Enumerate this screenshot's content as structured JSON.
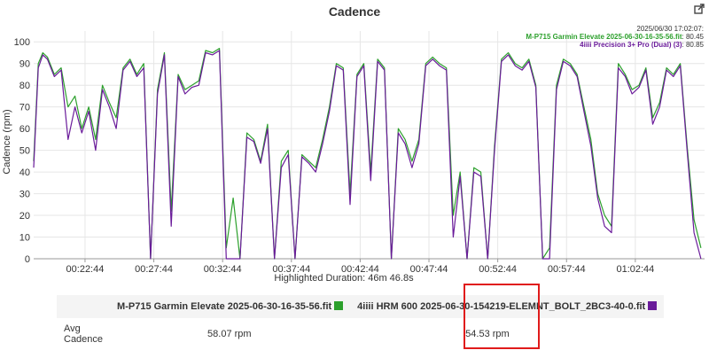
{
  "header": {
    "export_icon": "external-link-icon"
  },
  "chart_data": {
    "type": "line",
    "title": "Cadence",
    "ylabel": "Cadence (rpm)",
    "xlabel": "",
    "ylim": [
      0,
      105
    ],
    "yticks": [
      0,
      10,
      20,
      30,
      40,
      50,
      60,
      70,
      80,
      90,
      100
    ],
    "xlim": [
      "00:19:00",
      "01:07:46"
    ],
    "xticks": [
      "00:22:44",
      "00:27:44",
      "00:32:44",
      "00:37:44",
      "00:42:44",
      "00:47:44",
      "00:52:44",
      "00:57:44",
      "01:02:44"
    ],
    "grid": true,
    "legend": {
      "placement": "top-right",
      "timestamp": "2025/06/30 17:02:07:",
      "entries": [
        {
          "name": "M-P715 Garmin Elevate 2025-06-30-16-35-56.fit",
          "value": "80.45"
        },
        {
          "name": "4iiii Precision 3+ Pro (Dual) (3)",
          "value": "80.85"
        }
      ]
    },
    "highlighted_duration": "Highlighted Duration: 46m 46.8s",
    "series": [
      {
        "name": "M-P715 Garmin Elevate 2025-06-30-16-35-56.fit",
        "color": "#2ca02c",
        "x": [
          "00:19:00",
          "00:19:20",
          "00:19:40",
          "00:20:00",
          "00:20:30",
          "00:21:00",
          "00:21:30",
          "00:22:00",
          "00:22:30",
          "00:23:00",
          "00:23:30",
          "00:24:00",
          "00:24:30",
          "00:25:00",
          "00:25:30",
          "00:26:00",
          "00:26:30",
          "00:27:00",
          "00:27:30",
          "00:28:00",
          "00:28:30",
          "00:29:00",
          "00:29:30",
          "00:30:00",
          "00:30:30",
          "00:31:00",
          "00:31:30",
          "00:32:00",
          "00:32:30",
          "00:33:00",
          "00:33:30",
          "00:34:00",
          "00:34:30",
          "00:35:00",
          "00:35:30",
          "00:36:00",
          "00:36:30",
          "00:37:00",
          "00:37:30",
          "00:38:00",
          "00:38:30",
          "00:39:00",
          "00:39:30",
          "00:40:00",
          "00:40:30",
          "00:41:00",
          "00:41:30",
          "00:42:00",
          "00:42:30",
          "00:43:00",
          "00:43:30",
          "00:44:00",
          "00:44:30",
          "00:45:00",
          "00:45:30",
          "00:46:00",
          "00:46:30",
          "00:47:00",
          "00:47:30",
          "00:48:00",
          "00:48:30",
          "00:49:00",
          "00:49:30",
          "00:50:00",
          "00:50:30",
          "00:51:00",
          "00:51:30",
          "00:52:00",
          "00:52:30",
          "00:53:00",
          "00:53:30",
          "00:54:00",
          "00:54:30",
          "00:55:00",
          "00:55:30",
          "00:56:00",
          "00:56:30",
          "00:57:00",
          "00:57:30",
          "00:58:00",
          "00:58:30",
          "00:59:00",
          "00:59:30",
          "01:00:00",
          "01:00:30",
          "01:01:00",
          "01:01:30",
          "01:02:00",
          "01:02:30",
          "01:03:00",
          "01:03:30",
          "01:04:00",
          "01:04:30",
          "01:05:00",
          "01:05:30",
          "01:06:00",
          "01:06:30",
          "01:07:00",
          "01:07:30"
        ],
        "values": [
          45,
          90,
          95,
          93,
          85,
          88,
          70,
          75,
          60,
          70,
          55,
          80,
          72,
          65,
          88,
          92,
          85,
          90,
          0,
          78,
          95,
          22,
          85,
          78,
          80,
          82,
          96,
          95,
          97,
          5,
          28,
          0,
          58,
          55,
          45,
          62,
          0,
          45,
          50,
          0,
          48,
          45,
          42,
          55,
          70,
          90,
          88,
          30,
          85,
          90,
          40,
          92,
          88,
          0,
          60,
          55,
          45,
          55,
          90,
          93,
          90,
          88,
          20,
          40,
          0,
          42,
          40,
          0,
          52,
          92,
          95,
          90,
          88,
          92,
          80,
          0,
          5,
          80,
          92,
          90,
          85,
          70,
          55,
          30,
          20,
          15,
          90,
          85,
          78,
          80,
          88,
          65,
          72,
          88,
          85,
          90,
          52,
          18,
          5
        ]
      },
      {
        "name": "4iiii Precision 3+ Pro (Dual) (3)",
        "color": "#6a1b9a",
        "x": [
          "00:19:00",
          "00:19:20",
          "00:19:40",
          "00:20:00",
          "00:20:30",
          "00:21:00",
          "00:21:30",
          "00:22:00",
          "00:22:30",
          "00:23:00",
          "00:23:30",
          "00:24:00",
          "00:24:30",
          "00:25:00",
          "00:25:30",
          "00:26:00",
          "00:26:30",
          "00:27:00",
          "00:27:30",
          "00:28:00",
          "00:28:30",
          "00:29:00",
          "00:29:30",
          "00:30:00",
          "00:30:30",
          "00:31:00",
          "00:31:30",
          "00:32:00",
          "00:32:30",
          "00:33:00",
          "00:33:30",
          "00:34:00",
          "00:34:30",
          "00:35:00",
          "00:35:30",
          "00:36:00",
          "00:36:30",
          "00:37:00",
          "00:37:30",
          "00:38:00",
          "00:38:30",
          "00:39:00",
          "00:39:30",
          "00:40:00",
          "00:40:30",
          "00:41:00",
          "00:41:30",
          "00:42:00",
          "00:42:30",
          "00:43:00",
          "00:43:30",
          "00:44:00",
          "00:44:30",
          "00:45:00",
          "00:45:30",
          "00:46:00",
          "00:46:30",
          "00:47:00",
          "00:47:30",
          "00:48:00",
          "00:48:30",
          "00:49:00",
          "00:49:30",
          "00:50:00",
          "00:50:30",
          "00:51:00",
          "00:51:30",
          "00:52:00",
          "00:52:30",
          "00:53:00",
          "00:53:30",
          "00:54:00",
          "00:54:30",
          "00:55:00",
          "00:55:30",
          "00:56:00",
          "00:56:30",
          "00:57:00",
          "00:57:30",
          "00:58:00",
          "00:58:30",
          "00:59:00",
          "00:59:30",
          "01:00:00",
          "01:00:30",
          "01:01:00",
          "01:01:30",
          "01:02:00",
          "01:02:30",
          "01:03:00",
          "01:03:30",
          "01:04:00",
          "01:04:30",
          "01:05:00",
          "01:05:30",
          "01:06:00",
          "01:06:30",
          "01:07:00",
          "01:07:30"
        ],
        "values": [
          42,
          88,
          94,
          92,
          84,
          87,
          55,
          70,
          58,
          68,
          50,
          78,
          70,
          60,
          87,
          91,
          84,
          88,
          0,
          76,
          94,
          15,
          84,
          76,
          79,
          80,
          95,
          94,
          96,
          0,
          0,
          0,
          56,
          54,
          44,
          60,
          0,
          42,
          48,
          0,
          47,
          44,
          40,
          53,
          68,
          89,
          87,
          25,
          84,
          89,
          36,
          91,
          87,
          0,
          58,
          53,
          42,
          53,
          89,
          92,
          89,
          87,
          10,
          38,
          0,
          40,
          38,
          0,
          50,
          91,
          94,
          89,
          87,
          91,
          79,
          0,
          0,
          78,
          91,
          89,
          84,
          68,
          52,
          28,
          15,
          12,
          88,
          84,
          76,
          79,
          87,
          62,
          70,
          87,
          84,
          89,
          50,
          12,
          0
        ]
      }
    ]
  },
  "summary": {
    "columns": [
      {
        "label": "M-P715 Garmin Elevate 2025-06-30-16-35-56.fit",
        "color": "#2ca02c"
      },
      {
        "label": "4iiii HRM 600 2025-06-30-154219-ELEMNT_BOLT_2BC3-40-0.fit",
        "color": "#6a1b9a"
      }
    ],
    "rows": [
      {
        "label": "Avg Cadence",
        "values": [
          "58.07 rpm",
          "54.53 rpm"
        ]
      }
    ]
  }
}
